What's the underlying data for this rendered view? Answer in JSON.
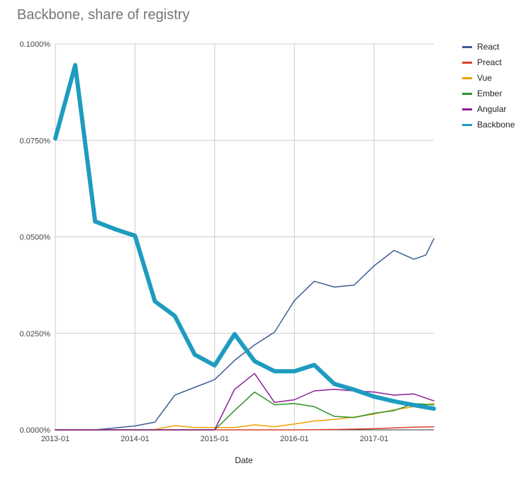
{
  "chart_data": {
    "type": "line",
    "title": "Backbone, share of registry",
    "xlabel": "Date",
    "ylabel": "",
    "ylim": [
      0,
      0.1
    ],
    "yticks": [
      0,
      0.025,
      0.05,
      0.075,
      0.1
    ],
    "ytick_labels": [
      "0.0000%",
      "0.0250%",
      "0.0500%",
      "0.0750%",
      "0.1000%"
    ],
    "xlim": [
      2013.0,
      2017.75
    ],
    "xticks": [
      2013.0,
      2014.0,
      2015.0,
      2016.0,
      2017.0
    ],
    "xtick_labels": [
      "2013-01",
      "2014-01",
      "2015-01",
      "2016-01",
      "2017-01"
    ],
    "legend_position": "right",
    "series": [
      {
        "name": "React",
        "color": "#3f5d98",
        "width": 1.5,
        "points": [
          [
            2013.0,
            0
          ],
          [
            2013.25,
            0
          ],
          [
            2013.5,
            0
          ],
          [
            2013.75,
            0.0005
          ],
          [
            2014.0,
            0.001
          ],
          [
            2014.25,
            0.002
          ],
          [
            2014.5,
            0.009
          ],
          [
            2014.75,
            0.011
          ],
          [
            2015.0,
            0.013
          ],
          [
            2015.25,
            0.018
          ],
          [
            2015.5,
            0.022
          ],
          [
            2015.75,
            0.0253
          ],
          [
            2016.0,
            0.0335
          ],
          [
            2016.25,
            0.0385
          ],
          [
            2016.5,
            0.037
          ],
          [
            2016.75,
            0.0375
          ],
          [
            2017.0,
            0.0425
          ],
          [
            2017.25,
            0.0465
          ],
          [
            2017.5,
            0.0442
          ],
          [
            2017.65,
            0.0453
          ],
          [
            2017.75,
            0.0495
          ]
        ]
      },
      {
        "name": "Preact",
        "color": "#d9402b",
        "width": 1.5,
        "points": [
          [
            2013.0,
            0
          ],
          [
            2014.0,
            0
          ],
          [
            2015.0,
            0
          ],
          [
            2016.0,
            0
          ],
          [
            2016.5,
            0.0001
          ],
          [
            2017.0,
            0.0003
          ],
          [
            2017.25,
            0.0005
          ],
          [
            2017.5,
            0.0007
          ],
          [
            2017.75,
            0.0008
          ]
        ]
      },
      {
        "name": "Vue",
        "color": "#f2a100",
        "width": 1.5,
        "points": [
          [
            2013.0,
            0
          ],
          [
            2014.0,
            0
          ],
          [
            2014.25,
            0.0001
          ],
          [
            2014.5,
            0.0011
          ],
          [
            2014.75,
            0.0006
          ],
          [
            2015.0,
            0.0006
          ],
          [
            2015.25,
            0.0006
          ],
          [
            2015.5,
            0.0013
          ],
          [
            2015.75,
            0.0008
          ],
          [
            2016.0,
            0.0015
          ],
          [
            2016.25,
            0.0023
          ],
          [
            2016.5,
            0.0027
          ],
          [
            2016.75,
            0.0033
          ],
          [
            2017.0,
            0.0041
          ],
          [
            2017.25,
            0.0052
          ],
          [
            2017.5,
            0.006
          ],
          [
            2017.75,
            0.0068
          ]
        ]
      },
      {
        "name": "Ember",
        "color": "#2e9228",
        "width": 1.5,
        "points": [
          [
            2013.0,
            0
          ],
          [
            2014.0,
            0
          ],
          [
            2015.0,
            0
          ],
          [
            2015.25,
            0.005
          ],
          [
            2015.5,
            0.0098
          ],
          [
            2015.75,
            0.0065
          ],
          [
            2016.0,
            0.0068
          ],
          [
            2016.25,
            0.006
          ],
          [
            2016.5,
            0.0035
          ],
          [
            2016.75,
            0.0032
          ],
          [
            2017.0,
            0.0043
          ],
          [
            2017.25,
            0.005
          ],
          [
            2017.5,
            0.0068
          ],
          [
            2017.75,
            0.0065
          ]
        ]
      },
      {
        "name": "Angular",
        "color": "#8c1d98",
        "width": 1.5,
        "points": [
          [
            2013.0,
            0
          ],
          [
            2014.0,
            0
          ],
          [
            2015.0,
            0
          ],
          [
            2015.25,
            0.0105
          ],
          [
            2015.5,
            0.0146
          ],
          [
            2015.75,
            0.0071
          ],
          [
            2016.0,
            0.0078
          ],
          [
            2016.25,
            0.0101
          ],
          [
            2016.5,
            0.0105
          ],
          [
            2016.75,
            0.0101
          ],
          [
            2017.0,
            0.0098
          ],
          [
            2017.25,
            0.009
          ],
          [
            2017.5,
            0.0093
          ],
          [
            2017.75,
            0.0075
          ]
        ]
      },
      {
        "name": "Backbone",
        "color": "#1d9cbf",
        "width": 6,
        "points": [
          [
            2013.0,
            0.0755
          ],
          [
            2013.25,
            0.0945
          ],
          [
            2013.5,
            0.054
          ],
          [
            2013.75,
            0.052
          ],
          [
            2014.0,
            0.0503
          ],
          [
            2014.25,
            0.0333
          ],
          [
            2014.5,
            0.0295
          ],
          [
            2014.75,
            0.0195
          ],
          [
            2015.0,
            0.0167
          ],
          [
            2015.25,
            0.0248
          ],
          [
            2015.5,
            0.0178
          ],
          [
            2015.75,
            0.0152
          ],
          [
            2016.0,
            0.0152
          ],
          [
            2016.25,
            0.0168
          ],
          [
            2016.5,
            0.0119
          ],
          [
            2016.75,
            0.0104
          ],
          [
            2017.0,
            0.0086
          ],
          [
            2017.25,
            0.0074
          ],
          [
            2017.5,
            0.0064
          ],
          [
            2017.75,
            0.0055
          ]
        ]
      }
    ]
  }
}
